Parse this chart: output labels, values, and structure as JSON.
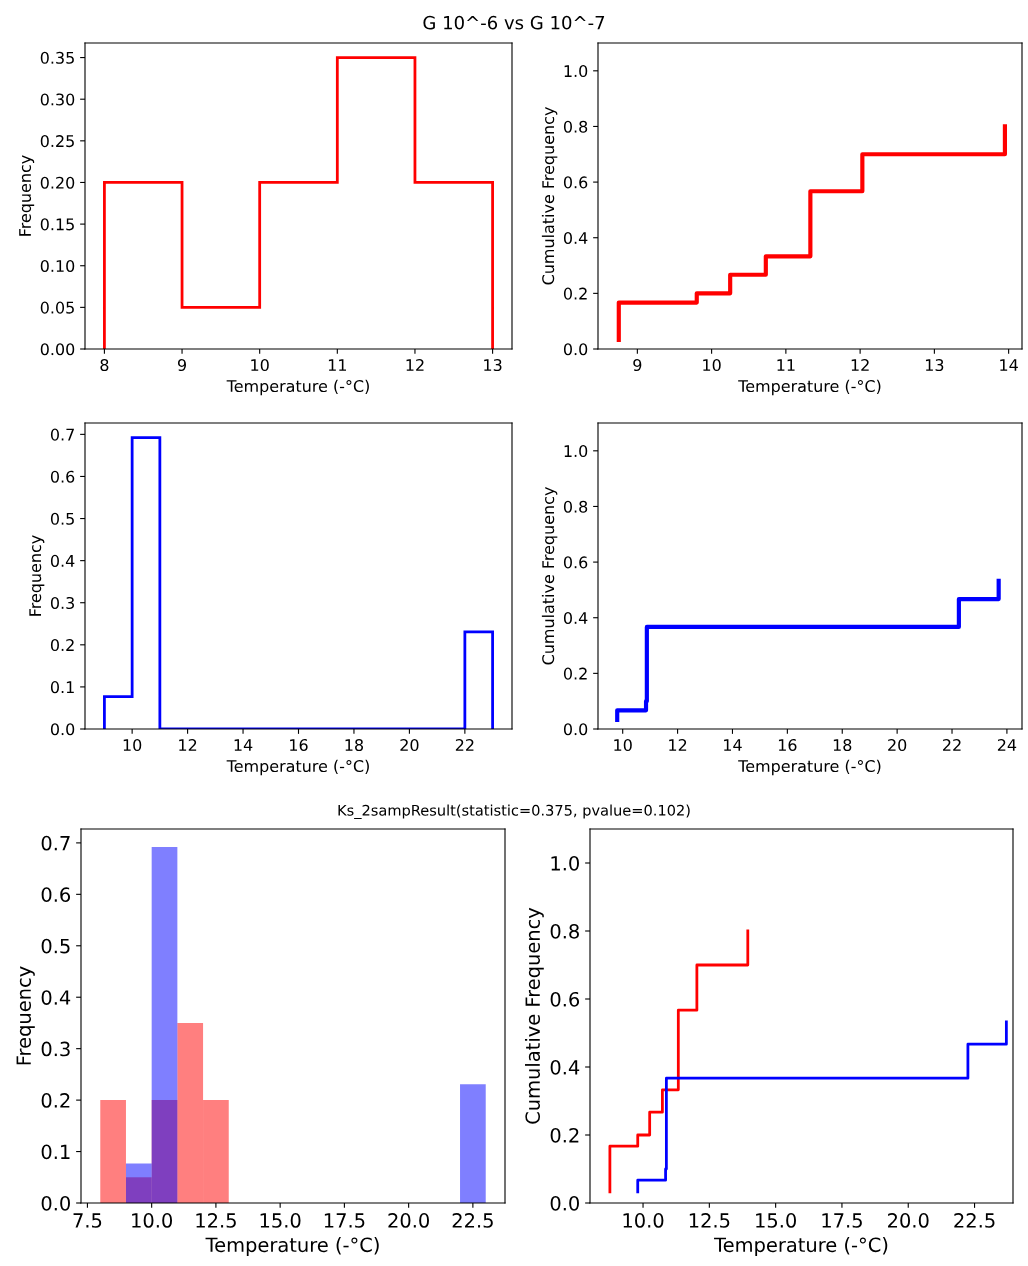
{
  "chart_data": [
    {
      "type": "histogram",
      "title": "G 10^-6 vs G 10^-7",
      "xlabel": "Temperature (-°C)",
      "ylabel": "Frequency",
      "line_style": "solid",
      "color": "#ff0000",
      "bins": [
        8,
        9,
        10,
        11,
        12,
        13
      ],
      "values": [
        0.2,
        0.05,
        0.2,
        0.35,
        0.2
      ],
      "xlim": [
        7.75,
        13.25
      ],
      "ylim": [
        0,
        0.3675
      ],
      "xticks": [
        8,
        9,
        10,
        11,
        12,
        13
      ],
      "yticks": [
        {
          "value": 0,
          "label": "0.00"
        },
        0.05,
        {
          "value": 0.1,
          "label": "0.10"
        },
        0.15,
        {
          "value": 0.2,
          "label": "0.20"
        },
        0.25,
        {
          "value": 0.3,
          "label": "0.30"
        },
        0.35
      ],
      "grid": false
    },
    {
      "type": "step",
      "xlabel": "Temperature (-°C)",
      "ylabel": "Cumulative Frequency",
      "series": [
        {
          "color": "#ff0000",
          "x": [
            8.75,
            8.75,
            9.8,
            10.25,
            10.73,
            11.33,
            12.03,
            13.95
          ],
          "values": [
            0.033,
            0.167,
            0.2,
            0.267,
            0.333,
            0.567,
            0.7,
            0.8
          ]
        }
      ],
      "xlim": [
        8.47,
        14.18
      ],
      "ylim": [
        0,
        1.1
      ],
      "xticks": [
        9,
        10,
        11,
        12,
        13,
        14
      ],
      "yticks": [
        {
          "value": 0,
          "label": "0.0"
        },
        0.2,
        0.4,
        0.6,
        0.8,
        {
          "value": 1,
          "label": "1.0"
        }
      ],
      "grid": false
    },
    {
      "type": "histogram",
      "xlabel": "Temperature (-°C)",
      "ylabel": "Frequency",
      "line_style": "solid",
      "color": "#0000ff",
      "bins": [
        9,
        10,
        11,
        12,
        13,
        14,
        15,
        16,
        17,
        18,
        19,
        20,
        21,
        22,
        23
      ],
      "values": [
        0.077,
        0.692,
        0,
        0,
        0,
        0,
        0,
        0,
        0,
        0,
        0,
        0,
        0,
        0.231
      ],
      "xlim": [
        8.3,
        23.7
      ],
      "ylim": [
        0,
        0.727
      ],
      "xticks": [
        10,
        12,
        14,
        16,
        18,
        20,
        22
      ],
      "yticks": [
        {
          "value": 0,
          "label": "0.0"
        },
        0.1,
        0.2,
        0.3,
        0.4,
        0.5,
        0.6,
        0.7
      ],
      "grid": false
    },
    {
      "type": "step",
      "xlabel": "Temperature (-°C)",
      "ylabel": "Cumulative Frequency",
      "series": [
        {
          "color": "#0000ff",
          "x": [
            9.8,
            9.8,
            10.85,
            10.88,
            22.25,
            23.7
          ],
          "values": [
            0.033,
            0.067,
            0.1,
            0.367,
            0.467,
            0.533
          ]
        }
      ],
      "xlim": [
        9.1,
        24.55
      ],
      "ylim": [
        0,
        1.1
      ],
      "xticks": [
        10,
        12,
        14,
        16,
        18,
        20,
        22,
        24
      ],
      "yticks": [
        {
          "value": 0,
          "label": "0.0"
        },
        0.2,
        0.4,
        0.6,
        0.8,
        {
          "value": 1,
          "label": "1.0"
        }
      ],
      "grid": false
    },
    {
      "type": "histogram",
      "title": "Ks_2sampResult(statistic=0.375, pvalue=0.102)",
      "xlabel": "Temperature (-°C)",
      "ylabel": "Frequency",
      "bins": [
        8,
        9,
        10,
        11,
        12,
        13,
        14,
        15,
        16,
        17,
        18,
        19,
        20,
        21,
        22,
        23
      ],
      "series": [
        {
          "color": "#ff0000",
          "values": [
            0.2,
            0.05,
            0.2,
            0.35,
            0.2,
            0,
            0,
            0,
            0,
            0,
            0,
            0,
            0,
            0,
            0
          ]
        },
        {
          "color": "#0000ff",
          "values": [
            0,
            0.077,
            0.692,
            0,
            0,
            0,
            0,
            0,
            0,
            0,
            0,
            0,
            0,
            0,
            0.231
          ]
        }
      ],
      "xlim": [
        7.25,
        23.75
      ],
      "ylim": [
        0,
        0.727
      ],
      "xticks": [
        7.5,
        {
          "value": 10,
          "label": "10.0"
        },
        12.5,
        {
          "value": 15,
          "label": "15.0"
        },
        17.5,
        {
          "value": 20,
          "label": "20.0"
        },
        22.5
      ],
      "yticks": [
        {
          "value": 0,
          "label": "0.0"
        },
        0.1,
        0.2,
        0.3,
        0.4,
        0.5,
        0.6,
        0.7
      ],
      "grid": false
    },
    {
      "type": "step",
      "xlabel": "Temperature (-°C)",
      "ylabel": "Cumulative Frequency",
      "series": [
        {
          "color": "#ff0000",
          "x": [
            8.75,
            8.75,
            9.8,
            10.25,
            10.73,
            11.33,
            12.03,
            13.95
          ],
          "values": [
            0.033,
            0.167,
            0.2,
            0.267,
            0.333,
            0.567,
            0.7,
            0.8
          ]
        },
        {
          "color": "#0000ff",
          "x": [
            9.8,
            9.8,
            10.85,
            10.88,
            22.25,
            23.7
          ],
          "values": [
            0.033,
            0.067,
            0.1,
            0.367,
            0.467,
            0.533
          ]
        }
      ],
      "xlim": [
        8.0,
        23.95
      ],
      "ylim": [
        0,
        1.1
      ],
      "xticks": [
        {
          "value": 10,
          "label": "10.0"
        },
        12.5,
        {
          "value": 15,
          "label": "15.0"
        },
        17.5,
        {
          "value": 20,
          "label": "20.0"
        },
        22.5
      ],
      "yticks": [
        {
          "value": 0,
          "label": "0.0"
        },
        0.2,
        0.4,
        0.6,
        0.8,
        {
          "value": 1,
          "label": "1.0"
        }
      ],
      "grid": false
    }
  ]
}
